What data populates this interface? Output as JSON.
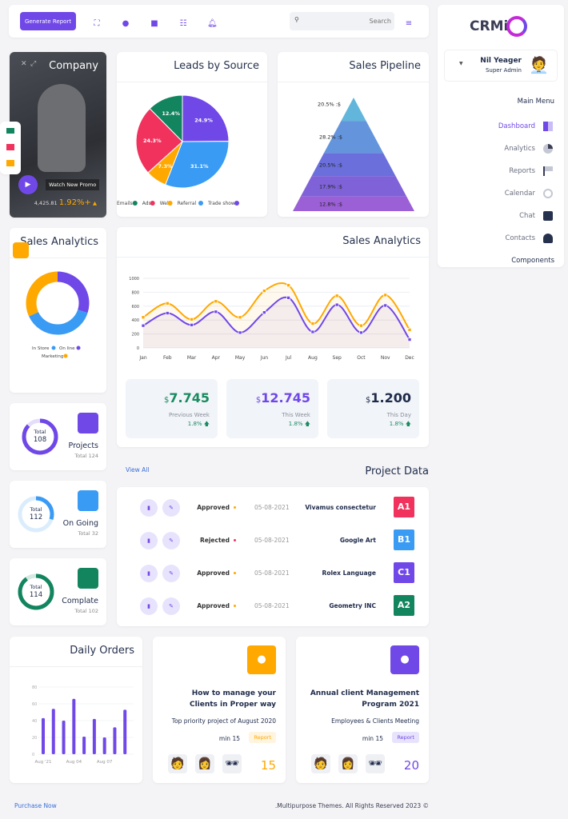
{
  "topbar": {
    "generate_label": "Generate Report",
    "search_placeholder": "Search",
    "icons": [
      "expand-icon",
      "chat-icon",
      "note-icon",
      "tasks-icon",
      "bell-icon",
      "menu-icon"
    ]
  },
  "sidebar": {
    "logo": "CRMi",
    "user_name": "Nil Yeager",
    "user_role": "Super Admin",
    "section": "Main Menu",
    "items": [
      {
        "label": "Dashboard",
        "icon": "dashboard-icon",
        "active": true
      },
      {
        "label": "Analytics",
        "icon": "pie-icon"
      },
      {
        "label": "Reports",
        "icon": "flag-icon"
      },
      {
        "label": "Calendar",
        "icon": "alarm-icon"
      },
      {
        "label": "Chat",
        "icon": "chat-icon"
      },
      {
        "label": "Contacts",
        "icon": "add-user-icon"
      }
    ],
    "components": "Components"
  },
  "company": {
    "title": "Company",
    "promo": "Watch New Promo",
    "value": "4,425.81",
    "change": "1.92%+"
  },
  "leads": {
    "title": "Leads by Source"
  },
  "pipeline": {
    "title": "Sales Pipeline"
  },
  "analytics_donut": {
    "title": "Sales Analytics"
  },
  "analytics_line": {
    "title": "Sales Analytics"
  },
  "stats": [
    {
      "cur": "$",
      "value": "7.745",
      "label": "Previous Week",
      "change": "1.8%",
      "color": "#1a8a5f"
    },
    {
      "cur": "$",
      "value": "12.745",
      "label": "This Week",
      "change": "1.8%",
      "color": "#7048e8"
    },
    {
      "cur": "$",
      "value": "1.200",
      "label": "This Day",
      "change": "1.8%",
      "color": "#1e2a4a"
    }
  ],
  "projects": [
    {
      "total_label": "Total",
      "total": "108",
      "title": "Projects",
      "sub": "Total 124",
      "color": "#7048e8",
      "pct": 0.87,
      "icon": "file-icon"
    },
    {
      "total_label": "Total",
      "total": "112",
      "title": "On Going",
      "sub": "Total 32",
      "color": "#3a9bf4",
      "pct": 0.3,
      "icon": "gears-icon"
    },
    {
      "total_label": "Total",
      "total": "114",
      "title": "Complate",
      "sub": "Total 102",
      "color": "#12855f",
      "pct": 0.9,
      "icon": "trophy-icon"
    }
  ],
  "project_data": {
    "title": "Project Data",
    "view_all": "View All",
    "rows": [
      {
        "status": "Approved",
        "status_color": "#ffa800",
        "date": "05-08-2021",
        "name": "Vivamus consectetur",
        "code": "A1",
        "color": "#f0325d"
      },
      {
        "status": "Rejected",
        "status_color": "#f0325d",
        "date": "05-08-2021",
        "name": "Google Art",
        "code": "B1",
        "color": "#3a9bf4"
      },
      {
        "status": "Approved",
        "status_color": "#ffa800",
        "date": "05-08-2021",
        "name": "Rolex Language",
        "code": "C1",
        "color": "#7048e8"
      },
      {
        "status": "Approved",
        "status_color": "#ffa800",
        "date": "05-08-2021",
        "name": "Geometry INC",
        "code": "A2",
        "color": "#12855f"
      }
    ]
  },
  "daily_orders": {
    "title": "Daily Orders"
  },
  "promo_cards": [
    {
      "title": "How to manage your Clients in Proper way",
      "sub": "Top priority project of August 2020",
      "min": "min 15",
      "tag": "Report",
      "count": "15",
      "color": "#ffa800",
      "icon": "user-icon"
    },
    {
      "title": "Annual client Management Program 2021",
      "sub": "Employees & Clients Meeting",
      "min": "min 15",
      "tag": "Report",
      "count": "20",
      "color": "#7048e8",
      "icon": "users-icon"
    }
  ],
  "footer": {
    "link": "Purchase Now",
    "copy": ".Multipurpose Themes. All Rights Reserved 2023 ©"
  },
  "chart_data": [
    {
      "type": "pie",
      "title": "Leads by Source",
      "categories": [
        "Trade show",
        "Referral",
        "Web",
        "Ads",
        "Emails"
      ],
      "values": [
        24.9,
        31.1,
        7.3,
        24.3,
        12.4
      ],
      "labels": [
        "24.9%",
        "31.1%",
        "7.3%",
        "24.3%",
        "12.4%"
      ],
      "colors": [
        "#7048e8",
        "#3a9bf4",
        "#ffa800",
        "#f0325d",
        "#12855f"
      ],
      "legend": [
        "Emails",
        "Ads",
        "Web",
        "Referral",
        "Trade show"
      ],
      "legend_colors": [
        "#12855f",
        "#f0325d",
        "#ffa800",
        "#3a9bf4",
        "#7048e8"
      ],
      "legend_position": "bottom"
    },
    {
      "type": "funnel",
      "title": "Sales Pipeline",
      "labels": [
        "20.5% :$",
        "28.2% :$",
        "20.5% :$",
        "17.9% :$",
        "12.8% :$"
      ],
      "values": [
        20.5,
        28.2,
        20.5,
        17.9,
        12.8
      ],
      "colors": [
        "#63b6db",
        "#6495dc",
        "#6a6fdc",
        "#7f62d8",
        "#9b5fd6"
      ]
    },
    {
      "type": "donut",
      "title": "Sales Analytics",
      "categories": [
        "On line",
        "In Store",
        "Marketing"
      ],
      "values": [
        30,
        38,
        32
      ],
      "colors": [
        "#7048e8",
        "#3a9bf4",
        "#ffa800"
      ],
      "legend": [
        "In Store",
        "On line",
        "Marketing"
      ],
      "legend_colors": [
        "#3a9bf4",
        "#7048e8",
        "#ffa800"
      ]
    },
    {
      "type": "area",
      "title": "Sales Analytics",
      "categories": [
        "Jan",
        "Feb",
        "Mar",
        "Apr",
        "May",
        "Jun",
        "Jul",
        "Aug",
        "Sep",
        "Oct",
        "Nov",
        "Dec"
      ],
      "series": [
        {
          "values": [
            440,
            640,
            410,
            670,
            440,
            820,
            900,
            350,
            750,
            320,
            760,
            260
          ],
          "color": "#ffa800"
        },
        {
          "values": [
            320,
            500,
            330,
            520,
            220,
            510,
            720,
            230,
            620,
            220,
            610,
            120
          ],
          "color": "#7048e8"
        }
      ],
      "ylim": [
        0,
        1000
      ],
      "yticks": [
        "0",
        "200",
        "400",
        "600",
        "800",
        "1000"
      ],
      "grid": true
    },
    {
      "type": "bar",
      "title": "Daily Orders",
      "values": [
        43,
        54,
        40,
        66,
        21,
        42,
        20,
        32,
        53
      ],
      "xticks": [
        "Aug '21",
        "Aug 04",
        "Aug 07"
      ],
      "yticks": [
        "0",
        "20",
        "40",
        "60",
        "80"
      ],
      "ylim": [
        0,
        80
      ],
      "color": "#7048e8"
    }
  ]
}
